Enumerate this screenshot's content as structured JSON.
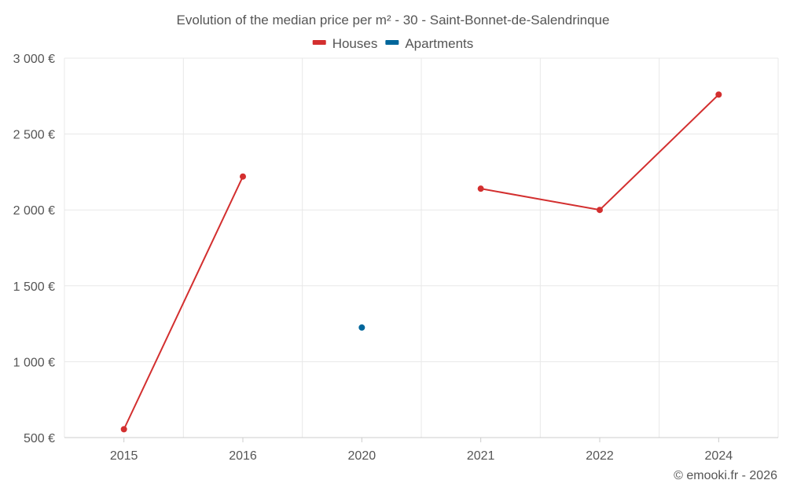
{
  "chart_data": {
    "type": "line",
    "title": "Evolution of the median price per m² - 30 - Saint-Bonnet-de-Salendrinque",
    "categories": [
      "2015",
      "2016",
      "2020",
      "2021",
      "2022",
      "2024"
    ],
    "yticks": [
      500,
      1000,
      1500,
      2000,
      2500,
      3000
    ],
    "ytick_labels": [
      "500 €",
      "1 000 €",
      "1 500 €",
      "2 000 €",
      "2 500 €",
      "3 000 €"
    ],
    "ylim": [
      500,
      3000
    ],
    "grid": true,
    "legend_position": "top-center",
    "series": [
      {
        "name": "Houses",
        "color": "#d32f2f",
        "values": [
          555,
          2220,
          null,
          2140,
          2000,
          2760
        ]
      },
      {
        "name": "Apartments",
        "color": "#00669b",
        "values": [
          null,
          null,
          1225,
          null,
          null,
          null
        ]
      }
    ],
    "credit": "© emooki.fr - 2026"
  }
}
